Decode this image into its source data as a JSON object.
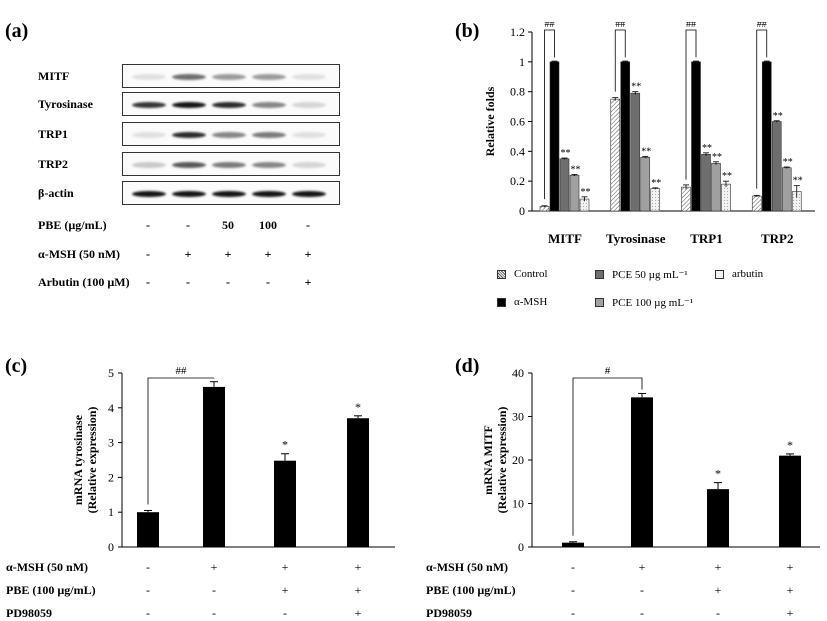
{
  "panel_letters": {
    "a": "(a)",
    "b": "(b)",
    "c": "(c)",
    "d": "(d)"
  },
  "panel_a": {
    "proteins": [
      "MITF",
      "Tyrosinase",
      "TRP1",
      "TRP2",
      "β-actin"
    ],
    "band_intensity": [
      [
        0.05,
        0.55,
        0.35,
        0.35,
        0.05
      ],
      [
        0.8,
        0.95,
        0.85,
        0.45,
        0.1
      ],
      [
        0.05,
        0.85,
        0.45,
        0.5,
        0.05
      ],
      [
        0.15,
        0.65,
        0.5,
        0.45,
        0.1
      ],
      [
        0.95,
        0.95,
        0.95,
        0.95,
        0.95
      ]
    ],
    "conditions": [
      {
        "label": "PBE (µg/mL)",
        "values": [
          "-",
          "-",
          "50",
          "100",
          "-"
        ]
      },
      {
        "label": "α-MSH (50 nM)",
        "values": [
          "-",
          "+",
          "+",
          "+",
          "+"
        ]
      },
      {
        "label": "Arbutin (100 µM)",
        "values": [
          "-",
          "-",
          "-",
          "-",
          "+"
        ]
      }
    ]
  },
  "chart_data": [
    {
      "panel": "b",
      "type": "bar",
      "ylabel": "Relative folds",
      "ylim": [
        0,
        1.2
      ],
      "yticks": [
        "0",
        "0.2",
        "0.4",
        "0.6",
        "0.8",
        "1",
        "1.2"
      ],
      "categories": [
        "MITF",
        "Tyrosinase",
        "TRP1",
        "TRP2"
      ],
      "series": [
        {
          "name": "Control",
          "values": [
            0.03,
            0.75,
            0.16,
            0.1
          ],
          "errors": [
            0.005,
            0.01,
            0.015,
            0.005
          ],
          "color": "#d9d9d9"
        },
        {
          "name": "α-MSH",
          "values": [
            1.0,
            1.0,
            1.0,
            1.0
          ],
          "errors": [
            0.005,
            0.005,
            0.005,
            0.005
          ],
          "color": "#000000"
        },
        {
          "name": "PCE 50 µg mL⁻¹",
          "values": [
            0.35,
            0.79,
            0.38,
            0.6
          ],
          "errors": [
            0.005,
            0.01,
            0.01,
            0.005
          ],
          "color": "#6e6e6e"
        },
        {
          "name": "PCE 100 µg mL⁻¹",
          "values": [
            0.24,
            0.36,
            0.32,
            0.29
          ],
          "errors": [
            0.005,
            0.005,
            0.01,
            0.005
          ],
          "color": "#a0a0a0"
        },
        {
          "name": "arbutin",
          "values": [
            0.08,
            0.15,
            0.18,
            0.13
          ],
          "errors": [
            0.015,
            0.005,
            0.02,
            0.04
          ],
          "color": "#ececec"
        }
      ],
      "significance_top": [
        "##",
        "##",
        "##",
        "##"
      ],
      "significance_bars": [
        [
          "",
          "",
          "**",
          "**",
          "**"
        ],
        [
          "",
          "",
          "**",
          "**",
          "**"
        ],
        [
          "",
          "",
          "**",
          "**",
          "**"
        ],
        [
          "",
          "",
          "**",
          "**",
          "**"
        ]
      ],
      "legend_position": "bottom"
    },
    {
      "panel": "c",
      "type": "bar",
      "ylabel": "mRNA tyrosinase (Relative expression)",
      "ylabel_lines": [
        "mRNA tyrosinase",
        "(Relative expression)"
      ],
      "ylim": [
        0,
        5
      ],
      "yticks": [
        "0",
        "1",
        "2",
        "3",
        "4",
        "5"
      ],
      "values": [
        1.0,
        4.6,
        2.48,
        3.7
      ],
      "errors": [
        0.05,
        0.15,
        0.2,
        0.07
      ],
      "stars": [
        "",
        "",
        "*",
        "*"
      ],
      "bracket_label": "##",
      "conditions": [
        {
          "label": "α-MSH (50 nM)",
          "values": [
            "-",
            "+",
            "+",
            "+"
          ]
        },
        {
          "label": "PBE (100 µg/mL)",
          "values": [
            "-",
            "-",
            "+",
            "+"
          ]
        },
        {
          "label": "PD98059",
          "values": [
            "-",
            "-",
            "-",
            "+"
          ]
        }
      ]
    },
    {
      "panel": "d",
      "type": "bar",
      "ylabel": "mRNA MITF (Relative expression)",
      "ylabel_lines": [
        "mRNA MITF",
        "(Relative expression)"
      ],
      "ylim": [
        0,
        40
      ],
      "yticks": [
        "0",
        "10",
        "20",
        "30",
        "40"
      ],
      "values": [
        1.0,
        34.4,
        13.3,
        21.0
      ],
      "errors": [
        0.2,
        0.9,
        1.5,
        0.4
      ],
      "stars": [
        "",
        "",
        "*",
        "*"
      ],
      "bracket_label": "#",
      "conditions": [
        {
          "label": "α-MSH (50 nM)",
          "values": [
            "-",
            "+",
            "+",
            "+"
          ]
        },
        {
          "label": "PBE (100 µg/mL)",
          "values": [
            "-",
            "-",
            "+",
            "+"
          ]
        },
        {
          "label": "PD98059",
          "values": [
            "-",
            "-",
            "-",
            "+"
          ]
        }
      ]
    }
  ]
}
